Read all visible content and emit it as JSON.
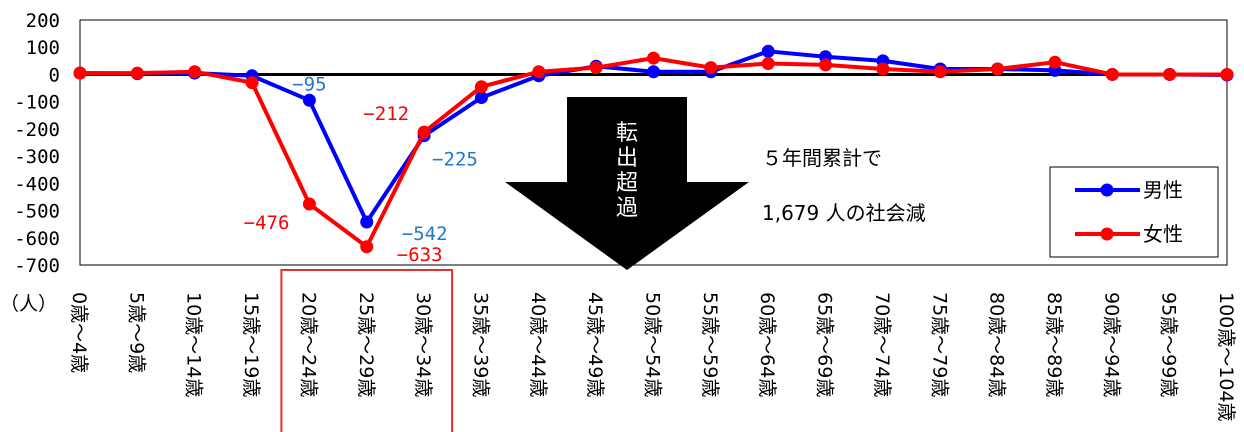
{
  "chart_data": {
    "type": "line",
    "unit_label": "（人）",
    "categories": [
      "0歳～4歳",
      "5歳～9歳",
      "10歳～14歳",
      "15歳～19歳",
      "20歳～24歳",
      "25歳～29歳",
      "30歳～34歳",
      "35歳～39歳",
      "40歳～44歳",
      "45歳～49歳",
      "50歳～54歳",
      "55歳～59歳",
      "60歳～64歳",
      "65歳～69歳",
      "70歳～74歳",
      "75歳～79歳",
      "80歳～84歳",
      "85歳～89歳",
      "90歳～94歳",
      "95歳～99歳",
      "100歳～104歳"
    ],
    "series": [
      {
        "name": "男性",
        "color": "#0000ff",
        "values": [
          5,
          3,
          5,
          -5,
          -95,
          -542,
          -225,
          -85,
          -5,
          30,
          10,
          10,
          85,
          65,
          50,
          20,
          20,
          15,
          0,
          0,
          -2
        ]
      },
      {
        "name": "女性",
        "color": "#ff0000",
        "values": [
          5,
          5,
          10,
          -30,
          -476,
          -633,
          -212,
          -45,
          10,
          25,
          60,
          25,
          40,
          35,
          20,
          10,
          20,
          45,
          0,
          0,
          0
        ]
      }
    ],
    "data_labels": [
      {
        "series": 0,
        "index": 4,
        "text": "−95"
      },
      {
        "series": 0,
        "index": 5,
        "text": "−542"
      },
      {
        "series": 0,
        "index": 6,
        "text": "−225"
      },
      {
        "series": 1,
        "index": 4,
        "text": "−476"
      },
      {
        "series": 1,
        "index": 5,
        "text": "−633"
      },
      {
        "series": 1,
        "index": 6,
        "text": "−212"
      }
    ],
    "ylim": [
      -700,
      200
    ],
    "yticks": [
      200,
      100,
      0,
      -100,
      -200,
      -300,
      -400,
      -500,
      -600,
      -700
    ],
    "highlight_range": [
      4,
      6
    ],
    "arrow_text": "転出超過",
    "annotation_lines": [
      "５年間累計で",
      "1,679 人の社会減"
    ],
    "legend_position": "right"
  }
}
